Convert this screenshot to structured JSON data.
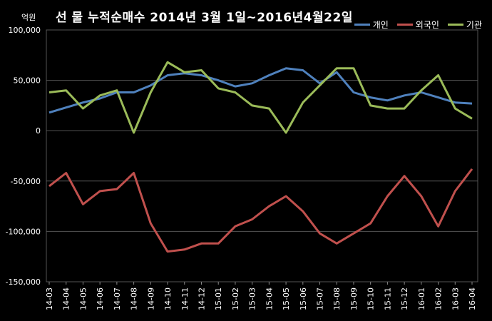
{
  "chart_data": {
    "type": "line",
    "title": "선 물 누적순매수 2014년 3월 1일~2016년4월22일",
    "unit": "억원",
    "ylim": [
      -150000,
      100000
    ],
    "yticks": [
      100000,
      50000,
      0,
      -50000,
      -100000,
      -150000
    ],
    "ytick_labels": [
      "100,000",
      "50,000",
      "0",
      "-50,000",
      "-100,000",
      "-150,000"
    ],
    "grid": true,
    "legend": "top-right",
    "x": [
      "14-03",
      "14-04",
      "14-05",
      "14-06",
      "14-07",
      "14-08",
      "14-09",
      "14-10",
      "14-11",
      "14-12",
      "15-01",
      "15-02",
      "15-03",
      "15-04",
      "15-05",
      "15-06",
      "15-07",
      "15-08",
      "15-09",
      "15-10",
      "15-11",
      "15-12",
      "16-01",
      "16-02",
      "16-03",
      "16-04"
    ],
    "series": [
      {
        "name": "개인",
        "color": "#4f81bd",
        "values": [
          18000,
          23000,
          28000,
          32000,
          38000,
          38000,
          45000,
          55000,
          57000,
          55000,
          50000,
          44000,
          47000,
          55000,
          62000,
          60000,
          47000,
          58000,
          38000,
          33000,
          30000,
          35000,
          38000,
          33000,
          28000,
          27000
        ]
      },
      {
        "name": "외국인",
        "color": "#c0504d",
        "values": [
          -55000,
          -42000,
          -73000,
          -60000,
          -58000,
          -42000,
          -92000,
          -120000,
          -118000,
          -112000,
          -112000,
          -95000,
          -88000,
          -75000,
          -65000,
          -80000,
          -102000,
          -112000,
          -102000,
          -92000,
          -65000,
          -45000,
          -65000,
          -95000,
          -60000,
          -38000
        ]
      },
      {
        "name": "기관",
        "color": "#9bbb59",
        "values": [
          38000,
          40000,
          22000,
          35000,
          40000,
          -2000,
          38000,
          68000,
          58000,
          60000,
          42000,
          38000,
          25000,
          22000,
          -2000,
          28000,
          45000,
          62000,
          62000,
          25000,
          22000,
          22000,
          40000,
          55000,
          22000,
          12000
        ]
      }
    ]
  }
}
